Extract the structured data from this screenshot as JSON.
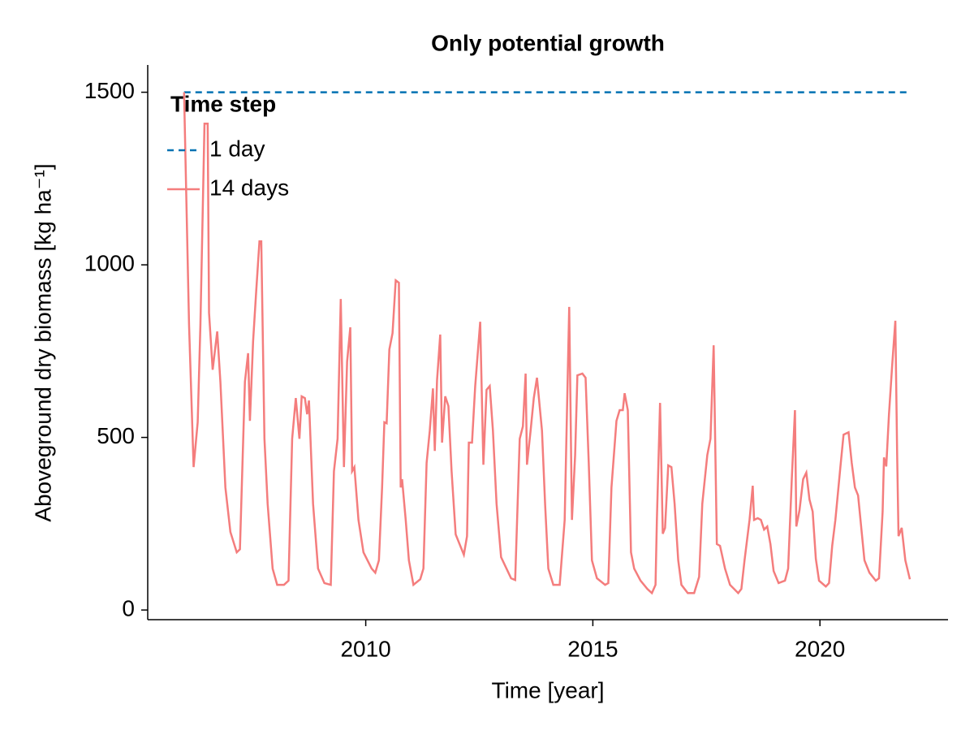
{
  "chart_data": {
    "type": "line",
    "title": "Only potential growth",
    "x_label": "Time [year]",
    "y_label": "Aboveground dry biomass [kg ha⁻¹]",
    "legend_title": "Time step",
    "legend_position": "upper left",
    "xlim": [
      2005.2,
      2022.82
    ],
    "ylim": [
      -28,
      1579
    ],
    "xticks": [
      2010,
      2015,
      2020
    ],
    "yticks": [
      0,
      500,
      1000,
      1500
    ],
    "series": [
      {
        "name": "1 day",
        "color": "#0072b2",
        "dash": true,
        "x": [
          2006.0,
          2022.0
        ],
        "values": [
          1500,
          1500
        ]
      },
      {
        "name": "14 days",
        "color": "#f47d7d",
        "dash": false,
        "x": [
          2006.0,
          2006.11,
          2006.21,
          2006.3,
          2006.36,
          2006.45,
          2006.52,
          2006.55,
          2006.63,
          2006.73,
          2006.8,
          2006.91,
          2007.02,
          2007.16,
          2007.23,
          2007.34,
          2007.41,
          2007.45,
          2007.52,
          2007.59,
          2007.66,
          2007.7,
          2007.77,
          2007.84,
          2007.95,
          2008.05,
          2008.2,
          2008.3,
          2008.38,
          2008.46,
          2008.54,
          2008.59,
          2008.66,
          2008.71,
          2008.75,
          2008.84,
          2008.95,
          2009.09,
          2009.23,
          2009.3,
          2009.38,
          2009.45,
          2009.52,
          2009.59,
          2009.66,
          2009.7,
          2009.75,
          2009.84,
          2009.95,
          2010.13,
          2010.21,
          2010.29,
          2010.36,
          2010.41,
          2010.46,
          2010.52,
          2010.59,
          2010.66,
          2010.73,
          2010.77,
          2010.8,
          2010.88,
          2010.95,
          2011.05,
          2011.2,
          2011.27,
          2011.34,
          2011.41,
          2011.48,
          2011.52,
          2011.57,
          2011.64,
          2011.68,
          2011.75,
          2011.82,
          2011.89,
          2011.98,
          2012.16,
          2012.23,
          2012.27,
          2012.34,
          2012.41,
          2012.52,
          2012.59,
          2012.66,
          2012.73,
          2012.8,
          2012.88,
          2012.98,
          2013.2,
          2013.29,
          2013.39,
          2013.46,
          2013.52,
          2013.55,
          2013.63,
          2013.7,
          2013.77,
          2013.88,
          2013.95,
          2014.02,
          2014.13,
          2014.27,
          2014.38,
          2014.45,
          2014.48,
          2014.54,
          2014.61,
          2014.66,
          2014.77,
          2014.84,
          2014.91,
          2014.98,
          2015.09,
          2015.27,
          2015.34,
          2015.41,
          2015.52,
          2015.59,
          2015.66,
          2015.7,
          2015.77,
          2015.84,
          2015.91,
          2016.05,
          2016.2,
          2016.3,
          2016.38,
          2016.41,
          2016.48,
          2016.54,
          2016.59,
          2016.66,
          2016.73,
          2016.8,
          2016.88,
          2016.95,
          2017.09,
          2017.23,
          2017.34,
          2017.41,
          2017.52,
          2017.59,
          2017.66,
          2017.73,
          2017.8,
          2017.91,
          2018.02,
          2018.2,
          2018.27,
          2018.34,
          2018.45,
          2018.52,
          2018.55,
          2018.63,
          2018.7,
          2018.77,
          2018.84,
          2018.91,
          2018.98,
          2019.09,
          2019.23,
          2019.3,
          2019.38,
          2019.45,
          2019.48,
          2019.55,
          2019.63,
          2019.7,
          2019.77,
          2019.84,
          2019.91,
          2019.98,
          2020.13,
          2020.2,
          2020.27,
          2020.34,
          2020.45,
          2020.52,
          2020.63,
          2020.7,
          2020.77,
          2020.84,
          2020.91,
          2020.98,
          2021.09,
          2021.23,
          2021.3,
          2021.38,
          2021.41,
          2021.46,
          2021.52,
          2021.59,
          2021.66,
          2021.7,
          2021.73,
          2021.8,
          2021.88,
          2021.98
        ],
        "values": [
          1500,
          826,
          414,
          544,
          826,
          1409,
          1409,
          861,
          696,
          807,
          661,
          355,
          226,
          167,
          176,
          661,
          744,
          548,
          779,
          927,
          1068,
          1068,
          496,
          308,
          120,
          73,
          73,
          85,
          496,
          614,
          496,
          619,
          614,
          567,
          607,
          308,
          120,
          78,
          73,
          402,
          496,
          901,
          414,
          720,
          819,
          402,
          414,
          261,
          167,
          120,
          108,
          144,
          355,
          544,
          541,
          755,
          802,
          955,
          948,
          355,
          379,
          261,
          144,
          73,
          89,
          120,
          426,
          520,
          642,
          461,
          666,
          798,
          485,
          619,
          591,
          402,
          219,
          160,
          214,
          485,
          485,
          649,
          835,
          421,
          638,
          649,
          520,
          308,
          153,
          92,
          87,
          496,
          532,
          685,
          421,
          520,
          614,
          673,
          520,
          304,
          120,
          73,
          73,
          261,
          696,
          878,
          261,
          449,
          680,
          685,
          673,
          426,
          144,
          92,
          73,
          78,
          355,
          548,
          579,
          579,
          628,
          579,
          167,
          120,
          85,
          61,
          49,
          73,
          261,
          600,
          221,
          238,
          419,
          414,
          308,
          144,
          73,
          49,
          49,
          96,
          308,
          449,
          496,
          767,
          191,
          186,
          120,
          73,
          49,
          61,
          144,
          261,
          360,
          261,
          266,
          261,
          233,
          242,
          191,
          113,
          78,
          85,
          120,
          379,
          579,
          242,
          289,
          379,
          398,
          320,
          285,
          148,
          85,
          68,
          78,
          186,
          261,
          414,
          508,
          515,
          426,
          355,
          332,
          238,
          144,
          108,
          85,
          92,
          285,
          442,
          416,
          567,
          708,
          838,
          449,
          214,
          238,
          144,
          89
        ]
      }
    ]
  }
}
